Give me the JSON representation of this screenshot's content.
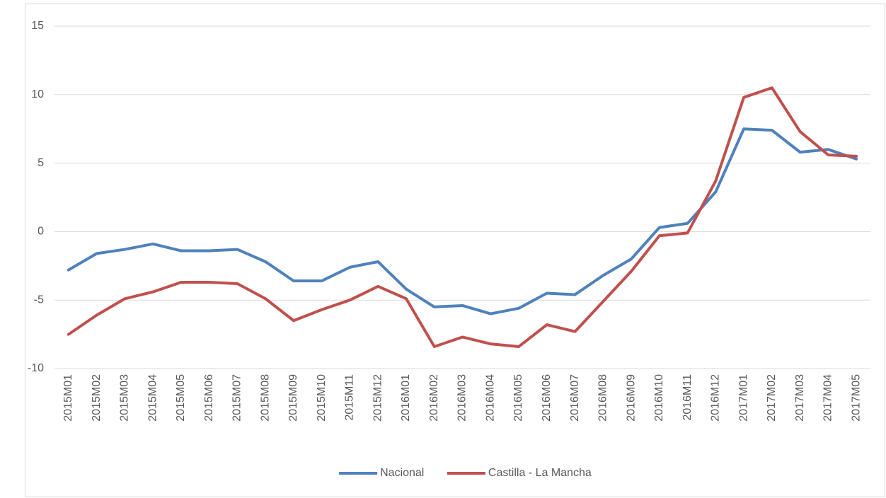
{
  "chart_data": {
    "type": "line",
    "categories": [
      "2015M01",
      "2015M02",
      "2015M03",
      "2015M04",
      "2015M05",
      "2015M06",
      "2015M07",
      "2015M08",
      "2015M09",
      "2015M10",
      "2015M11",
      "2015M12",
      "2016M01",
      "2016M02",
      "2016M03",
      "2016M04",
      "2016M05",
      "2016M06",
      "2016M07",
      "2016M08",
      "2016M09",
      "2016M10",
      "2016M11",
      "2016M12",
      "2017M01",
      "2017M02",
      "2017M03",
      "2017M04",
      "2017M05"
    ],
    "series": [
      {
        "name": "Nacional",
        "color": "#4f81bd",
        "values": [
          -2.8,
          -1.6,
          -1.3,
          -0.9,
          -1.4,
          -1.4,
          -1.3,
          -2.2,
          -3.6,
          -3.6,
          -2.6,
          -2.2,
          -4.2,
          -5.5,
          -5.4,
          -6.0,
          -5.6,
          -4.5,
          -4.6,
          -3.2,
          -2.0,
          0.3,
          0.6,
          2.9,
          7.5,
          7.4,
          5.8,
          6.0,
          5.3
        ]
      },
      {
        "name": "Castilla - La Mancha",
        "color": "#c0504d",
        "values": [
          -7.5,
          -6.1,
          -4.9,
          -4.4,
          -3.7,
          -3.7,
          -3.8,
          -4.9,
          -6.5,
          -5.7,
          -5.0,
          -4.0,
          -4.9,
          -8.4,
          -7.7,
          -8.2,
          -8.4,
          -6.8,
          -7.3,
          -5.1,
          -2.9,
          -0.3,
          -0.1,
          3.7,
          9.8,
          10.5,
          7.3,
          5.6,
          5.5
        ]
      }
    ],
    "ylim": [
      -10,
      15
    ],
    "yticks": [
      -10,
      -5,
      0,
      5,
      10,
      15
    ],
    "grid": true,
    "legend": "bottom"
  }
}
